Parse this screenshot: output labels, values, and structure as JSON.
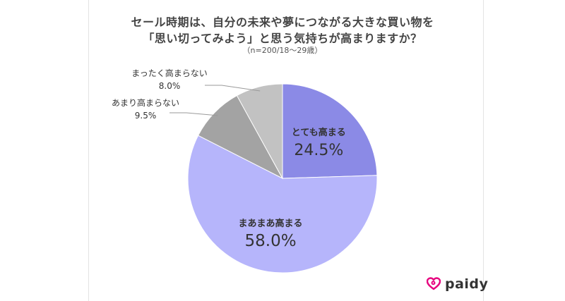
{
  "header": {
    "title_line1": "セール時期は、自分の未来や夢につながる大きな買い物を",
    "title_line2": "「思い切ってみよう」と思う気持ちが高まりますか？",
    "sample": "（n=200/18〜29歳）"
  },
  "brand": {
    "name": "paidy",
    "color": "#e6007e",
    "icon": "paidy-heart-logo-icon"
  },
  "chart_data": {
    "type": "pie",
    "title": "セール時期は、自分の未来や夢につながる大きな買い物を「思い切ってみよう」と思う気持ちが高まりますか？",
    "subtitle": "（n=200/18〜29歳）",
    "slices": [
      {
        "label": "とても高まる",
        "value": 24.5,
        "display": "24.5%",
        "color": "#8b8ae6"
      },
      {
        "label": "まあまあ高まる",
        "value": 58.0,
        "display": "58.0%",
        "color": "#b6b5fb"
      },
      {
        "label": "あまり高まらない",
        "value": 9.5,
        "display": "9.5%",
        "color": "#a3a3a3"
      },
      {
        "label": "まったく高まらない",
        "value": 8.0,
        "display": "8.0%",
        "color": "#c2c2c2"
      }
    ],
    "start": "12 o'clock",
    "direction": "clockwise"
  }
}
